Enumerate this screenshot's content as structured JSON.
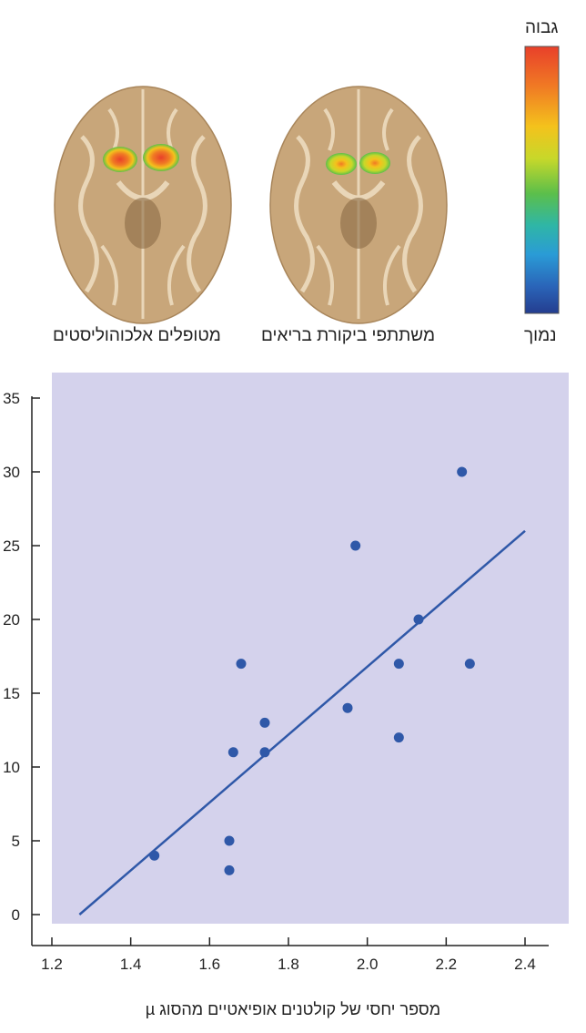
{
  "top_panel": {
    "scale_high": "גבוה",
    "scale_low": "נמוך",
    "scale_colors": [
      "#e8402a",
      "#f07a24",
      "#f4c21c",
      "#c7d82a",
      "#5cbf4a",
      "#2fb6a6",
      "#2a9bd6",
      "#2a64b8",
      "#243d8f"
    ],
    "brain_left_label": "מטופלים אלכוהוליסטים",
    "brain_right_label": "משתתפי ביקורת בריאים",
    "brain_color": "#c8a67a"
  },
  "chart_data": {
    "type": "scatter",
    "x": [
      1.46,
      1.65,
      1.65,
      1.66,
      1.68,
      1.74,
      1.74,
      1.95,
      1.97,
      2.08,
      2.08,
      2.13,
      2.24,
      2.26
    ],
    "y": [
      4.0,
      3.0,
      5.0,
      11.0,
      17.0,
      13.0,
      11.0,
      14.0,
      25.0,
      17.0,
      12.0,
      20.0,
      30.0,
      17.0
    ],
    "trendline": {
      "x": [
        1.27,
        2.4
      ],
      "y": [
        0.0,
        26.0
      ]
    },
    "xlim": [
      1.2,
      2.4
    ],
    "ylim": [
      0,
      35
    ],
    "xticks": [
      "1.2",
      "1.4",
      "1.6",
      "1.8",
      "2.0",
      "2.2",
      "2.4"
    ],
    "yticks": [
      "0",
      "5",
      "10",
      "15",
      "20",
      "25",
      "30",
      "35"
    ],
    "xlabel": "מספר יחסי של קולטנים אופיאטיים מהסוג µ",
    "ylabel": "",
    "grid": false,
    "plot_background": "#d4d2ec",
    "point_color": "#2f58a8",
    "line_color": "#2f58a8"
  }
}
